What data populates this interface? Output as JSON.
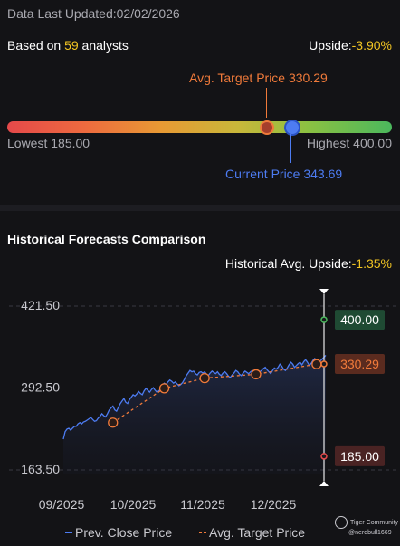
{
  "header": {
    "last_updated_label": "Data Last Updated:",
    "last_updated_value": "02/02/2026"
  },
  "summary": {
    "based_on_prefix": "Based on",
    "analyst_count": "59",
    "based_on_suffix": "analysts",
    "upside_label": "Upside:",
    "upside_value": "-3.90%"
  },
  "range": {
    "avg_target_label": "Avg. Target Price 330.29",
    "lowest_label": "Lowest 185.00",
    "highest_label": "Highest 400.00",
    "current_label": "Current Price 343.69",
    "low": 185.0,
    "high": 400.0,
    "avg": 330.29,
    "current": 343.69
  },
  "historical": {
    "title": "Historical Forecasts Comparison",
    "upside_label": "Historical Avg. Upside:",
    "upside_value": "-1.35%"
  },
  "badges": {
    "high": "400.00",
    "avg": "330.29",
    "low": "185.00"
  },
  "legend": {
    "prev_close": "Prev. Close Price",
    "avg_target": "Avg. Target Price"
  },
  "watermark": {
    "brand": "Tiger Community",
    "user": "@nerdbull1669"
  },
  "colors": {
    "price_line": "#4d7cf2",
    "target_line": "#f07a3a",
    "badge_high": "#1f4a33",
    "badge_mid": "#5a2b1f",
    "badge_low": "#4a2323"
  },
  "chart_data": {
    "type": "line",
    "y_ticks": [
      "421.50",
      "292.50",
      "163.50"
    ],
    "ylim": [
      163.5,
      421.5
    ],
    "x_ticks": [
      "09/2025",
      "10/2025",
      "11/2025",
      "12/2025"
    ],
    "series": [
      {
        "name": "Prev. Close Price",
        "x": [
          0,
          1,
          2,
          3,
          4,
          5,
          6,
          7,
          8,
          9,
          10,
          11,
          12,
          13,
          14,
          15,
          16,
          17,
          18,
          19,
          20,
          21,
          22,
          23,
          24,
          25,
          26,
          27,
          28,
          29,
          30,
          31,
          32,
          33,
          34,
          35,
          36,
          37,
          38,
          39,
          40,
          41,
          42,
          43,
          44,
          45,
          46,
          47,
          48,
          49,
          50,
          51,
          52,
          53,
          54,
          55,
          56,
          57,
          58,
          59,
          60,
          61,
          62,
          63,
          64,
          65,
          66,
          67,
          68,
          69,
          70,
          71,
          72,
          73,
          74,
          75,
          76,
          77,
          78,
          79,
          80,
          81,
          82,
          83,
          84,
          85,
          86,
          87,
          88,
          89,
          90,
          91,
          92,
          93,
          94,
          95,
          96,
          97,
          98,
          99,
          100,
          101,
          102,
          103,
          104,
          105,
          106,
          107,
          108,
          109,
          110,
          111,
          112,
          113,
          114,
          115,
          116,
          117,
          118,
          119,
          120,
          121,
          122,
          123,
          124,
          125,
          126,
          127,
          128,
          129,
          130,
          131,
          132,
          133,
          134,
          135,
          136,
          137,
          138,
          139,
          140,
          141,
          142,
          143
        ],
        "values": [
          212,
          224,
          228,
          229,
          226,
          229,
          232,
          232,
          236,
          238,
          236,
          239,
          240,
          242,
          244,
          246,
          243,
          240,
          241,
          245,
          248,
          252,
          249,
          247,
          252,
          258,
          261,
          264,
          258,
          256,
          262,
          268,
          272,
          276,
          270,
          268,
          274,
          278,
          282,
          280,
          283,
          287,
          284,
          282,
          288,
          292,
          289,
          286,
          290,
          293,
          289,
          286,
          288,
          291,
          297,
          300,
          298,
          302,
          305,
          303,
          300,
          302,
          299,
          296,
          298,
          301,
          306,
          312,
          316,
          320,
          318,
          319,
          315,
          313,
          317,
          318,
          316,
          318,
          314,
          312,
          316,
          319,
          317,
          315,
          318,
          314,
          312,
          316,
          318,
          315,
          311,
          309,
          313,
          316,
          320,
          318,
          314,
          312,
          316,
          319,
          317,
          315,
          318,
          320,
          317,
          314,
          316,
          318,
          320,
          323,
          325,
          321,
          318,
          315,
          320,
          324,
          322,
          325,
          330,
          327,
          322,
          320,
          324,
          329,
          333,
          330,
          325,
          328,
          331,
          333,
          329,
          334,
          337,
          333,
          328,
          331,
          336,
          339,
          336,
          332,
          335,
          338,
          341,
          344
        ]
      },
      {
        "name": "Avg. Target Price",
        "x": [
          27,
          55,
          77,
          105,
          138
        ],
        "values": [
          238,
          292,
          308,
          314,
          330
        ]
      }
    ],
    "markers": [
      400.0,
      330.29,
      185.0
    ]
  }
}
